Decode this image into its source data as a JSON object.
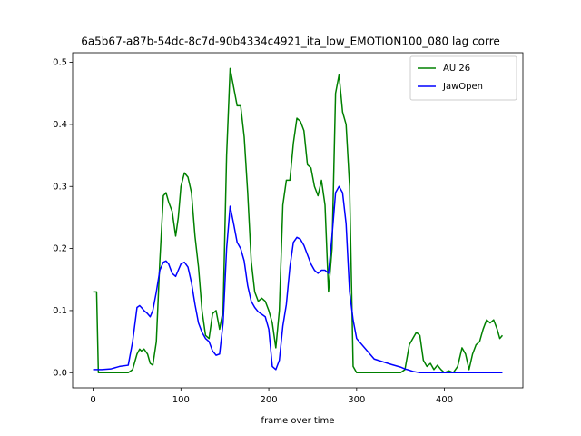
{
  "chart_data": {
    "type": "line",
    "title": "6a5b67-a87b-54dc-8c7d-90b4334c4921_ita_low_EMOTION100_080  lag corre",
    "xlabel": "frame over time",
    "x": [
      0,
      4,
      6,
      10,
      20,
      30,
      40,
      45,
      50,
      53,
      55,
      58,
      62,
      65,
      68,
      72,
      76,
      80,
      83,
      86,
      90,
      94,
      97,
      100,
      104,
      108,
      112,
      116,
      120,
      124,
      128,
      132,
      136,
      140,
      144,
      148,
      152,
      156,
      160,
      164,
      168,
      172,
      176,
      180,
      184,
      188,
      192,
      196,
      200,
      204,
      208,
      212,
      216,
      220,
      224,
      228,
      232,
      236,
      240,
      244,
      248,
      252,
      256,
      260,
      264,
      268,
      272,
      276,
      280,
      284,
      288,
      292,
      296,
      300,
      320,
      340,
      350,
      355,
      360,
      364,
      368,
      372,
      376,
      380,
      384,
      388,
      392,
      396,
      400,
      405,
      410,
      415,
      420,
      424,
      428,
      432,
      436,
      440,
      444,
      448,
      452,
      456,
      460,
      463,
      466
    ],
    "series": [
      {
        "name": "AU 26",
        "color": "#008000",
        "values": [
          0.13,
          0.13,
          0,
          0,
          0,
          0,
          0,
          0.005,
          0.03,
          0.038,
          0.035,
          0.038,
          0.03,
          0.015,
          0.012,
          0.05,
          0.18,
          0.285,
          0.29,
          0.275,
          0.26,
          0.22,
          0.25,
          0.3,
          0.322,
          0.315,
          0.29,
          0.22,
          0.17,
          0.1,
          0.06,
          0.055,
          0.095,
          0.1,
          0.07,
          0.1,
          0.35,
          0.49,
          0.46,
          0.43,
          0.43,
          0.38,
          0.29,
          0.18,
          0.13,
          0.115,
          0.12,
          0.115,
          0.1,
          0.08,
          0.04,
          0.1,
          0.27,
          0.31,
          0.31,
          0.37,
          0.41,
          0.405,
          0.39,
          0.335,
          0.33,
          0.3,
          0.285,
          0.31,
          0.27,
          0.13,
          0.2,
          0.45,
          0.48,
          0.42,
          0.4,
          0.3,
          0.01,
          0,
          0,
          0,
          0,
          0.005,
          0.045,
          0.055,
          0.065,
          0.06,
          0.02,
          0.01,
          0.015,
          0.005,
          0.012,
          0.005,
          0,
          0.003,
          0,
          0.01,
          0.04,
          0.03,
          0.005,
          0.03,
          0.045,
          0.05,
          0.07,
          0.085,
          0.08,
          0.085,
          0.07,
          0.055,
          0.06
        ]
      },
      {
        "name": "JawOpen",
        "color": "#0000ff",
        "values": [
          0.005,
          0.005,
          0.005,
          0.005,
          0.006,
          0.01,
          0.012,
          0.05,
          0.105,
          0.108,
          0.105,
          0.1,
          0.095,
          0.09,
          0.1,
          0.13,
          0.165,
          0.178,
          0.18,
          0.175,
          0.16,
          0.155,
          0.165,
          0.175,
          0.178,
          0.17,
          0.145,
          0.11,
          0.08,
          0.065,
          0.055,
          0.05,
          0.035,
          0.028,
          0.03,
          0.08,
          0.2,
          0.268,
          0.24,
          0.21,
          0.2,
          0.18,
          0.14,
          0.115,
          0.105,
          0.098,
          0.094,
          0.09,
          0.07,
          0.01,
          0.005,
          0.02,
          0.075,
          0.11,
          0.17,
          0.21,
          0.218,
          0.215,
          0.205,
          0.19,
          0.175,
          0.165,
          0.16,
          0.165,
          0.165,
          0.16,
          0.22,
          0.29,
          0.3,
          0.29,
          0.24,
          0.13,
          0.085,
          0.055,
          0.022,
          0.013,
          0.009,
          0.006,
          0.004,
          0.002,
          0.001,
          0,
          0,
          0,
          0,
          0,
          0,
          0,
          0,
          0,
          0,
          0,
          0,
          0,
          0,
          0,
          0,
          0,
          0,
          0,
          0,
          0,
          0,
          0,
          0
        ]
      }
    ],
    "xlim": [
      -23.3,
      489.3
    ],
    "ylim": [
      -0.0245,
      0.5155
    ],
    "xticks": [
      0,
      100,
      200,
      300,
      400
    ],
    "yticks": [
      {
        "value": 0,
        "label": "0.0"
      },
      0.1,
      0.2,
      0.3,
      0.4,
      0.5
    ],
    "legend": "upper right"
  }
}
